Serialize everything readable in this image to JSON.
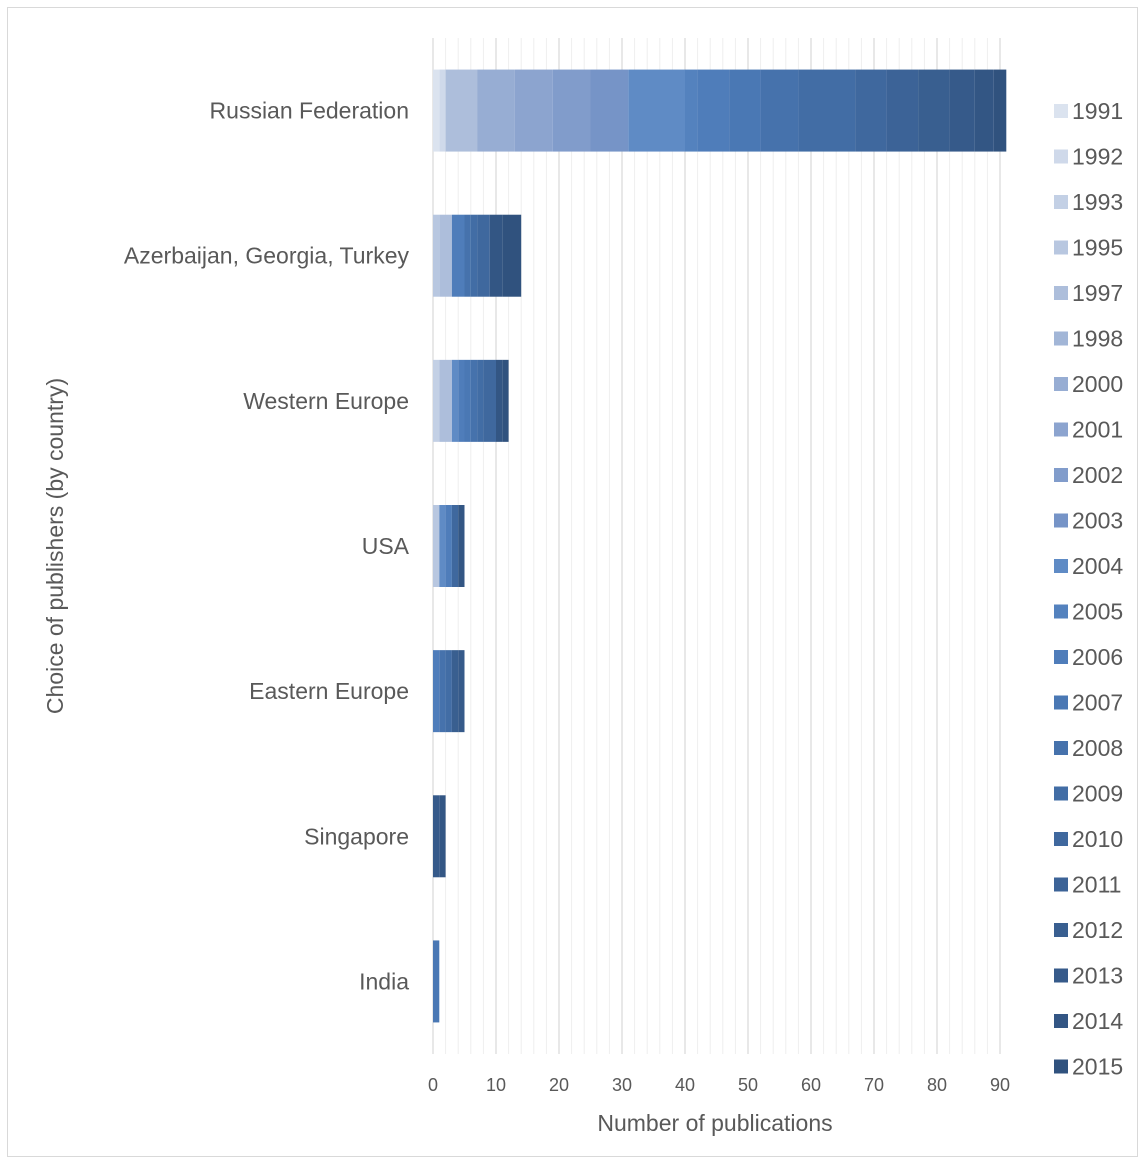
{
  "chart_data": {
    "type": "bar",
    "orientation": "horizontal",
    "stacked": true,
    "xlabel": "Number of publications",
    "ylabel": "Choice of publishers (by country)",
    "xlim": [
      0,
      90
    ],
    "xticks": [
      0,
      10,
      20,
      30,
      40,
      50,
      60,
      70,
      80,
      90
    ],
    "grid": true,
    "legend_position": "right",
    "categories": [
      "Russian Federation",
      "Azerbaijan, Georgia, Turkey",
      "Western Europe",
      "USA",
      "Eastern Europe",
      "Singapore",
      "India"
    ],
    "series": [
      {
        "name": "1991",
        "color": "#dbe3ef",
        "values": [
          1,
          0,
          0,
          0,
          0,
          0,
          0
        ]
      },
      {
        "name": "1992",
        "color": "#cfd9ea",
        "values": [
          1,
          0,
          0,
          0,
          0,
          0,
          0
        ]
      },
      {
        "name": "1993",
        "color": "#c3d0e5",
        "values": [
          0,
          0,
          1,
          0,
          0,
          0,
          0
        ]
      },
      {
        "name": "1995",
        "color": "#b8c7e0",
        "values": [
          0,
          1,
          0,
          1,
          0,
          0,
          0
        ]
      },
      {
        "name": "1997",
        "color": "#adbedb",
        "values": [
          5,
          2,
          2,
          0,
          0,
          0,
          0
        ]
      },
      {
        "name": "1998",
        "color": "#a2b6d7",
        "values": [
          0,
          0,
          0,
          0,
          0,
          0,
          0
        ]
      },
      {
        "name": "2000",
        "color": "#97add3",
        "values": [
          6,
          0,
          0,
          0,
          0,
          0,
          0
        ]
      },
      {
        "name": "2001",
        "color": "#8ca4cf",
        "values": [
          6,
          0,
          0,
          0,
          0,
          0,
          0
        ]
      },
      {
        "name": "2002",
        "color": "#819ccb",
        "values": [
          6,
          0,
          0,
          0,
          0,
          0,
          0
        ]
      },
      {
        "name": "2003",
        "color": "#7694c7",
        "values": [
          6,
          0,
          0,
          0,
          0,
          0,
          0
        ]
      },
      {
        "name": "2004",
        "color": "#5f8bc5",
        "values": [
          9,
          0,
          1,
          1,
          0,
          0,
          0
        ]
      },
      {
        "name": "2005",
        "color": "#5482be",
        "values": [
          2,
          0,
          0,
          0,
          0,
          0,
          0
        ]
      },
      {
        "name": "2006",
        "color": "#4f7dba",
        "values": [
          5,
          2,
          1,
          1,
          1,
          0,
          0
        ]
      },
      {
        "name": "2007",
        "color": "#4a78b4",
        "values": [
          5,
          0,
          1,
          0,
          0,
          0,
          1
        ]
      },
      {
        "name": "2008",
        "color": "#4672ac",
        "values": [
          6,
          1,
          1,
          0,
          1,
          0,
          0
        ]
      },
      {
        "name": "2009",
        "color": "#426da5",
        "values": [
          9,
          1,
          1,
          0,
          1,
          0,
          0
        ]
      },
      {
        "name": "2010",
        "color": "#3f689e",
        "values": [
          5,
          2,
          2,
          1,
          0,
          0,
          0
        ]
      },
      {
        "name": "2011",
        "color": "#3c6397",
        "values": [
          5,
          0,
          0,
          0,
          0,
          0,
          0
        ]
      },
      {
        "name": "2012",
        "color": "#395f90",
        "values": [
          5,
          0,
          0,
          0,
          1,
          0,
          0
        ]
      },
      {
        "name": "2013",
        "color": "#365a8a",
        "values": [
          4,
          0,
          0,
          0,
          1,
          1,
          0
        ]
      },
      {
        "name": "2014",
        "color": "#335684",
        "values": [
          3,
          2,
          1,
          1,
          0,
          1,
          0
        ]
      },
      {
        "name": "2015",
        "color": "#30527e",
        "values": [
          2,
          3,
          1,
          0,
          0,
          0,
          0
        ]
      }
    ]
  }
}
